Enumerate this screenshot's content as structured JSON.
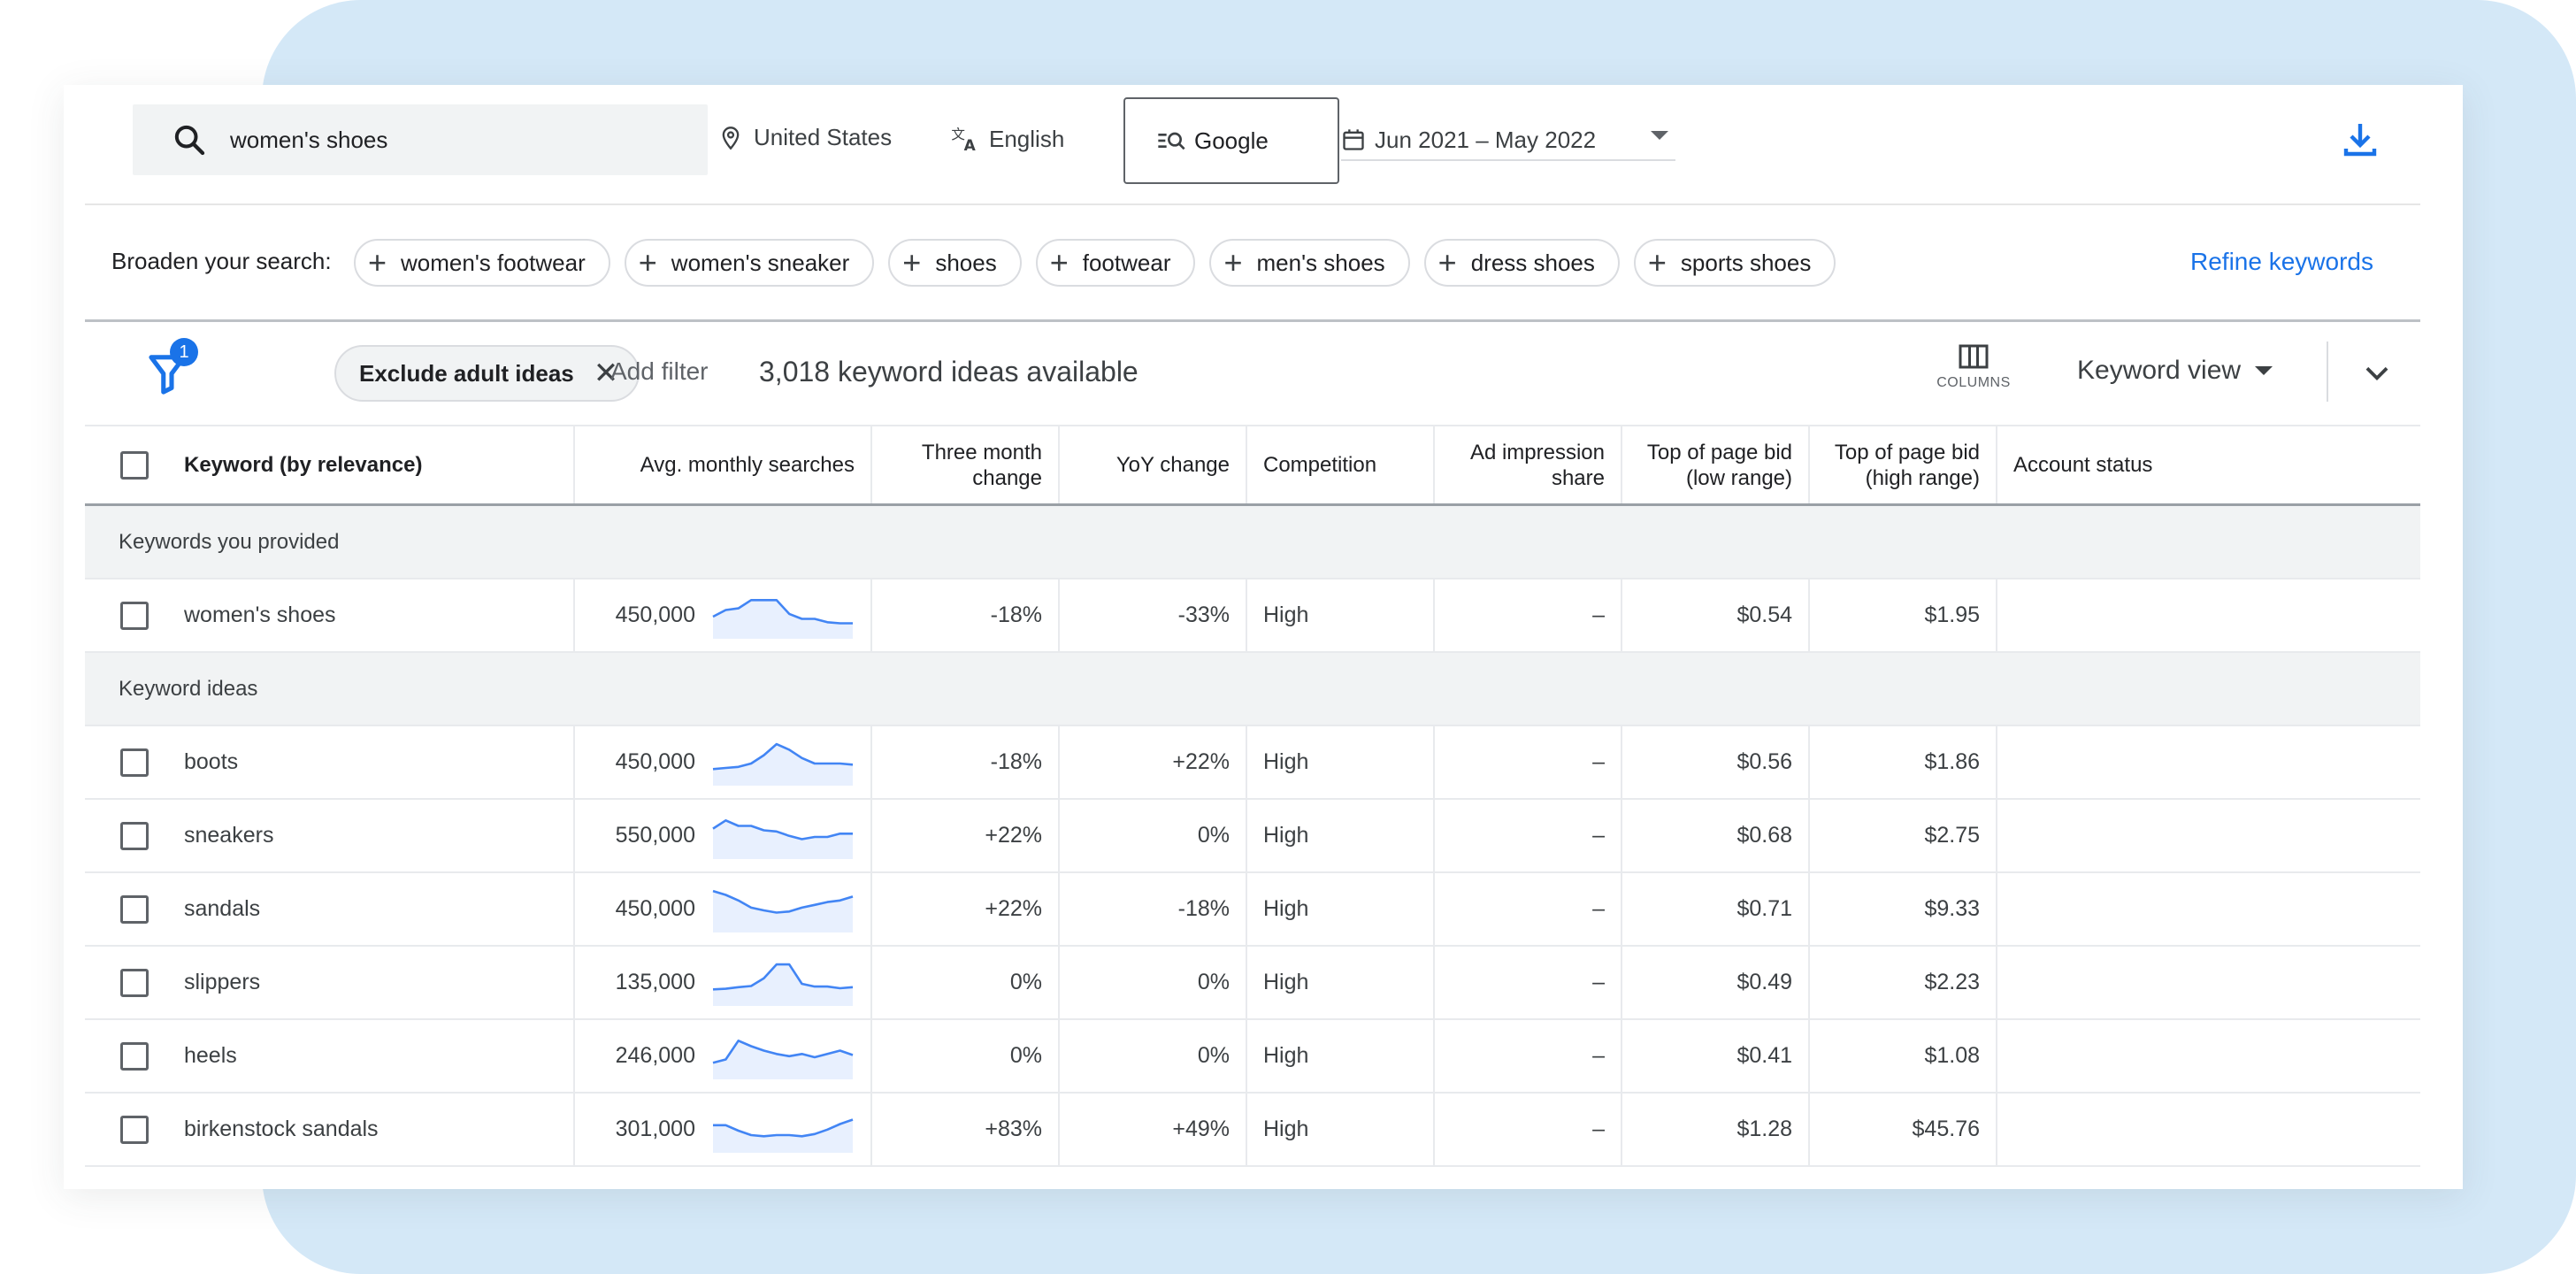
{
  "topbar": {
    "search_value": "women's shoes",
    "location": "United States",
    "language": "English",
    "network": "Google",
    "date_range": "Jun 2021 – May 2022"
  },
  "broaden": {
    "label": "Broaden your search:",
    "chips": [
      "women's footwear",
      "women's sneaker",
      "shoes",
      "footwear",
      "men's shoes",
      "dress shoes",
      "sports shoes"
    ],
    "refine_label": "Refine keywords"
  },
  "filters": {
    "badge_count": "1",
    "exclude_chip": "Exclude adult ideas",
    "add_filter": "Add filter",
    "ideas_count": "3,018 keyword ideas available",
    "columns_label": "COLUMNS",
    "view_label": "Keyword view"
  },
  "table": {
    "headers": {
      "keyword": "Keyword (by relevance)",
      "avg_searches": "Avg. monthly searches",
      "three_month_1": "Three month",
      "three_month_2": "change",
      "yoy": "YoY change",
      "competition": "Competition",
      "ad_imp_1": "Ad impression",
      "ad_imp_2": "share",
      "bid_low_1": "Top of page bid",
      "bid_low_2": "(low range)",
      "bid_high_1": "Top of page bid",
      "bid_high_2": "(high range)",
      "account": "Account status"
    },
    "section_provided": "Keywords you provided",
    "section_ideas": "Keyword ideas",
    "provided": [
      {
        "keyword": "women's shoes",
        "avg": "450,000",
        "three": "-18%",
        "yoy": "-33%",
        "comp": "High",
        "adimp": "–",
        "low": "$0.54",
        "high": "$1.95",
        "trend": [
          40,
          52,
          55,
          70,
          70,
          70,
          45,
          36,
          36,
          30,
          28,
          28
        ]
      }
    ],
    "ideas": [
      {
        "keyword": "boots",
        "avg": "450,000",
        "three": "-18%",
        "yoy": "+22%",
        "comp": "High",
        "adimp": "–",
        "low": "$0.56",
        "high": "$1.86",
        "trend": [
          30,
          32,
          34,
          40,
          55,
          75,
          65,
          50,
          40,
          40,
          40,
          38
        ]
      },
      {
        "keyword": "sneakers",
        "avg": "550,000",
        "three": "+22%",
        "yoy": "0%",
        "comp": "High",
        "adimp": "–",
        "low": "$0.68",
        "high": "$2.75",
        "trend": [
          55,
          70,
          60,
          60,
          52,
          50,
          42,
          36,
          40,
          40,
          46,
          46
        ]
      },
      {
        "keyword": "sandals",
        "avg": "450,000",
        "three": "+22%",
        "yoy": "-18%",
        "comp": "High",
        "adimp": "–",
        "low": "$0.71",
        "high": "$9.33",
        "trend": [
          75,
          68,
          58,
          45,
          40,
          36,
          38,
          45,
          50,
          55,
          58,
          65
        ]
      },
      {
        "keyword": "slippers",
        "avg": "135,000",
        "three": "0%",
        "yoy": "0%",
        "comp": "High",
        "adimp": "–",
        "low": "$0.49",
        "high": "$2.23",
        "trend": [
          30,
          31,
          34,
          36,
          50,
          75,
          75,
          40,
          35,
          35,
          32,
          34
        ]
      },
      {
        "keyword": "heels",
        "avg": "246,000",
        "three": "0%",
        "yoy": "0%",
        "comp": "High",
        "adimp": "–",
        "low": "$0.41",
        "high": "$1.08",
        "trend": [
          30,
          36,
          70,
          60,
          52,
          46,
          42,
          46,
          40,
          46,
          52,
          44
        ]
      },
      {
        "keyword": "birkenstock sandals",
        "avg": "301,000",
        "three": "+83%",
        "yoy": "+49%",
        "comp": "High",
        "adimp": "–",
        "low": "$1.28",
        "high": "$45.76",
        "trend": [
          50,
          50,
          40,
          32,
          30,
          32,
          32,
          30,
          34,
          42,
          52,
          60
        ]
      }
    ]
  },
  "colors": {
    "accent": "#1a73e8",
    "spark_line": "#4285f4",
    "spark_fill": "#e8f0fe",
    "section_bg": "#f1f3f4",
    "background_panel": "#d4e8f7"
  }
}
